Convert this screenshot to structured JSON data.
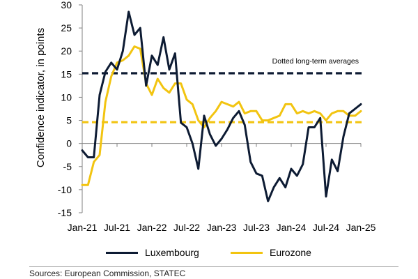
{
  "chart_data": {
    "type": "line",
    "ylabel": "Confidence indicator, in points",
    "ylim": [
      -15,
      30
    ],
    "yticks": [
      -15,
      -10,
      -5,
      0,
      5,
      10,
      15,
      20,
      25,
      30
    ],
    "xlim": [
      "2021-01",
      "2025-01"
    ],
    "xticks": [
      "Jan-21",
      "Jul-21",
      "Jan-22",
      "Jul-22",
      "Jan-23",
      "Jul-23",
      "Jan-24",
      "Jul-24",
      "Jan-25"
    ],
    "grid": false,
    "legend_position": "bottom",
    "annotation": "Dotted long-term averages",
    "x": [
      "2021-01",
      "2021-02",
      "2021-03",
      "2021-04",
      "2021-05",
      "2021-06",
      "2021-07",
      "2021-08",
      "2021-09",
      "2021-10",
      "2021-11",
      "2021-12",
      "2022-01",
      "2022-02",
      "2022-03",
      "2022-04",
      "2022-05",
      "2022-06",
      "2022-07",
      "2022-08",
      "2022-09",
      "2022-10",
      "2022-11",
      "2022-12",
      "2023-01",
      "2023-02",
      "2023-03",
      "2023-04",
      "2023-05",
      "2023-06",
      "2023-07",
      "2023-08",
      "2023-09",
      "2023-10",
      "2023-11",
      "2023-12",
      "2024-01",
      "2024-02",
      "2024-03",
      "2024-04",
      "2024-05",
      "2024-06",
      "2024-07",
      "2024-08",
      "2024-09",
      "2024-10",
      "2024-11",
      "2024-12",
      "2025-01"
    ],
    "series": [
      {
        "name": "Luxembourg",
        "color": "#0d1b33",
        "values": [
          -1.5,
          -3,
          -3,
          10.5,
          15.5,
          17.5,
          16,
          20,
          28.5,
          23.5,
          25,
          12.5,
          19,
          17,
          23,
          16,
          19.5,
          4.5,
          3.5,
          0,
          -5.5,
          6,
          2,
          -0.5,
          1,
          3,
          5.5,
          7,
          4,
          -4,
          -6.5,
          -7,
          -12.5,
          -9.5,
          -7.5,
          -9.5,
          -5.5,
          -7,
          -4.5,
          3.5,
          3.5,
          5.5,
          -11.5,
          -3.5,
          -6,
          1.5,
          6.5,
          7.5,
          8.5
        ],
        "long_term_average": 15.2
      },
      {
        "name": "Eurozone",
        "color": "#f2c410",
        "values": [
          -9,
          -9,
          -4,
          -2.5,
          9,
          14.5,
          17.5,
          18,
          19,
          21,
          20.5,
          13,
          10.5,
          14,
          12,
          11,
          13,
          13,
          9.5,
          8.5,
          5,
          3.5,
          5.5,
          7,
          9,
          8.5,
          8,
          9,
          6.5,
          7,
          7,
          5,
          5,
          5.5,
          6,
          8.5,
          8.5,
          6.5,
          7,
          6.5,
          7,
          6.5,
          5,
          6.5,
          7,
          7,
          6,
          6,
          7
        ],
        "long_term_average": 4.6
      }
    ]
  },
  "source": "Sources: European Commission, STATEC"
}
